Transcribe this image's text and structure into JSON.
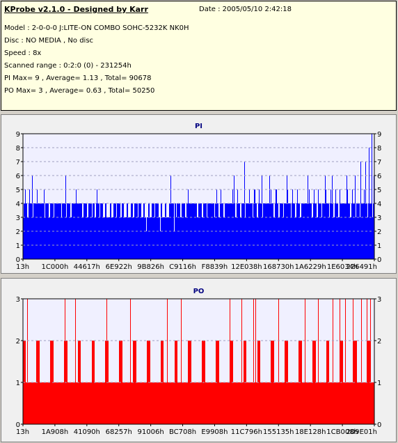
{
  "info": {
    "title": "KProbe v2.1.0 - Designed by Karr",
    "date": "Date : 2005/05/10 2:42:18",
    "lines": [
      "Model : 2-0-0-0 J:LITE-ON COMBO SOHC-5232K NK0H",
      "Disc : NO MEDIA , No disc",
      "Speed : 8x",
      "Scanned range : 0:2:0 (0) - 231254h",
      "PI Max= 9 , Average= 1.13 , Total= 90678",
      "PO Max= 3 , Average= 0.63 , Total= 50250"
    ]
  },
  "colors": {
    "pi_bar": "#0000ff",
    "po_bar": "#ff0000",
    "plot_bg": "#f0f0ff",
    "grid": "#a0a0c0"
  },
  "chart_data": [
    {
      "type": "bar",
      "title": "PI",
      "ylim": [
        0,
        9
      ],
      "yticks": [
        0,
        1,
        2,
        3,
        4,
        5,
        6,
        7,
        8,
        9
      ],
      "xticks": [
        "13h",
        "1C000h",
        "44617h",
        "6E922h",
        "9B826h",
        "C9116h",
        "F8839h",
        "12E038h",
        "168730h",
        "1A6229h",
        "1E6034h",
        "226491h"
      ],
      "grid": true,
      "baseline": 4,
      "peaks": [
        {
          "x": 0.005,
          "y": 5
        },
        {
          "x": 0.018,
          "y": 5
        },
        {
          "x": 0.025,
          "y": 6
        },
        {
          "x": 0.04,
          "y": 5
        },
        {
          "x": 0.06,
          "y": 5
        },
        {
          "x": 0.12,
          "y": 6
        },
        {
          "x": 0.15,
          "y": 5
        },
        {
          "x": 0.21,
          "y": 5
        },
        {
          "x": 0.42,
          "y": 6
        },
        {
          "x": 0.47,
          "y": 5
        },
        {
          "x": 0.55,
          "y": 5
        },
        {
          "x": 0.6,
          "y": 6
        },
        {
          "x": 0.63,
          "y": 7
        },
        {
          "x": 0.66,
          "y": 5
        },
        {
          "x": 0.68,
          "y": 6
        },
        {
          "x": 0.7,
          "y": 6
        },
        {
          "x": 0.72,
          "y": 5
        },
        {
          "x": 0.75,
          "y": 6
        },
        {
          "x": 0.78,
          "y": 5
        },
        {
          "x": 0.81,
          "y": 6
        },
        {
          "x": 0.84,
          "y": 5
        },
        {
          "x": 0.86,
          "y": 6
        },
        {
          "x": 0.88,
          "y": 6
        },
        {
          "x": 0.9,
          "y": 5
        },
        {
          "x": 0.92,
          "y": 6
        },
        {
          "x": 0.945,
          "y": 6
        },
        {
          "x": 0.96,
          "y": 7
        },
        {
          "x": 0.975,
          "y": 7
        },
        {
          "x": 0.985,
          "y": 8
        },
        {
          "x": 0.992,
          "y": 9
        },
        {
          "x": 0.998,
          "y": 6
        }
      ],
      "dips": [
        {
          "x": 0.35,
          "y": 2
        },
        {
          "x": 0.39,
          "y": 2
        },
        {
          "x": 0.42,
          "y": 2
        },
        {
          "x": 0.43,
          "y": 2
        }
      ]
    },
    {
      "type": "bar",
      "title": "PO",
      "ylim": [
        0,
        3
      ],
      "yticks": [
        0,
        1,
        2,
        3
      ],
      "xticks": [
        "13h",
        "1A908h",
        "41090h",
        "68257h",
        "91006h",
        "BC708h",
        "E9908h",
        "11C796h",
        "155135h",
        "18E128h",
        "1CB008h",
        "209E01h"
      ],
      "grid": true,
      "baseline": 1,
      "peaks3": [
        0.012,
        0.118,
        0.148,
        0.238,
        0.304,
        0.41,
        0.45,
        0.588,
        0.622,
        0.656,
        0.662,
        0.726,
        0.802,
        0.84,
        0.882,
        0.9,
        0.916,
        0.938,
        0.962,
        0.978,
        0.988
      ]
    }
  ]
}
